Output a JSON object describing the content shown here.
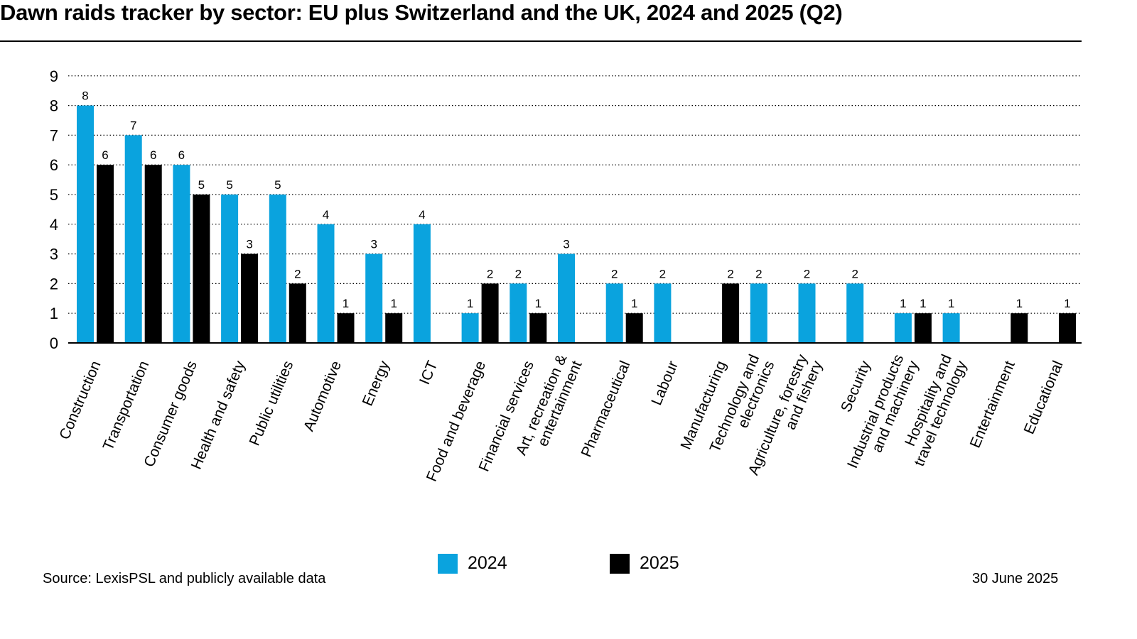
{
  "title": "Dawn raids tracker by sector: EU plus Switzerland and the UK, 2024 and 2025 (Q2)",
  "source": "Source: LexisPSL and publicly available data",
  "date": "30 June 2025",
  "colors": {
    "2024": "#0aa3de",
    "2025": "#000000"
  },
  "chart_data": {
    "type": "bar",
    "title": "Dawn raids tracker by sector: EU plus Switzerland and the UK, 2024 and 2025 (Q2)",
    "xlabel": "",
    "ylabel": "",
    "ylim": [
      0,
      9
    ],
    "yticks": [
      0,
      1,
      2,
      3,
      4,
      5,
      6,
      7,
      8,
      9
    ],
    "grid": true,
    "legend": "bottom-center",
    "categories": [
      [
        "Construction"
      ],
      [
        "Transportation"
      ],
      [
        "Consumer goods"
      ],
      [
        "Health and safety"
      ],
      [
        "Public utilities"
      ],
      [
        "Automotive"
      ],
      [
        "Energy"
      ],
      [
        "ICT"
      ],
      [
        "Food and beverage"
      ],
      [
        "Financial services"
      ],
      [
        "Art, recreation &",
        "entertainment"
      ],
      [
        "Pharmaceutical"
      ],
      [
        "Labour"
      ],
      [
        "Manufacturing"
      ],
      [
        "Technology and",
        "electronics"
      ],
      [
        "Agriculture, forestry",
        "and fishery"
      ],
      [
        "Security"
      ],
      [
        "Industrial products",
        "and machinery"
      ],
      [
        "Hospitality and",
        "travel technology"
      ],
      [
        "Entertainment"
      ],
      [
        "Educational"
      ]
    ],
    "series": [
      {
        "name": "2024",
        "values": [
          8,
          7,
          6,
          5,
          5,
          4,
          3,
          4,
          1,
          2,
          3,
          2,
          2,
          null,
          2,
          2,
          2,
          1,
          1,
          null,
          null
        ]
      },
      {
        "name": "2025",
        "values": [
          6,
          6,
          5,
          3,
          2,
          1,
          1,
          null,
          2,
          1,
          null,
          1,
          null,
          2,
          null,
          null,
          null,
          1,
          null,
          1,
          1
        ]
      }
    ]
  }
}
